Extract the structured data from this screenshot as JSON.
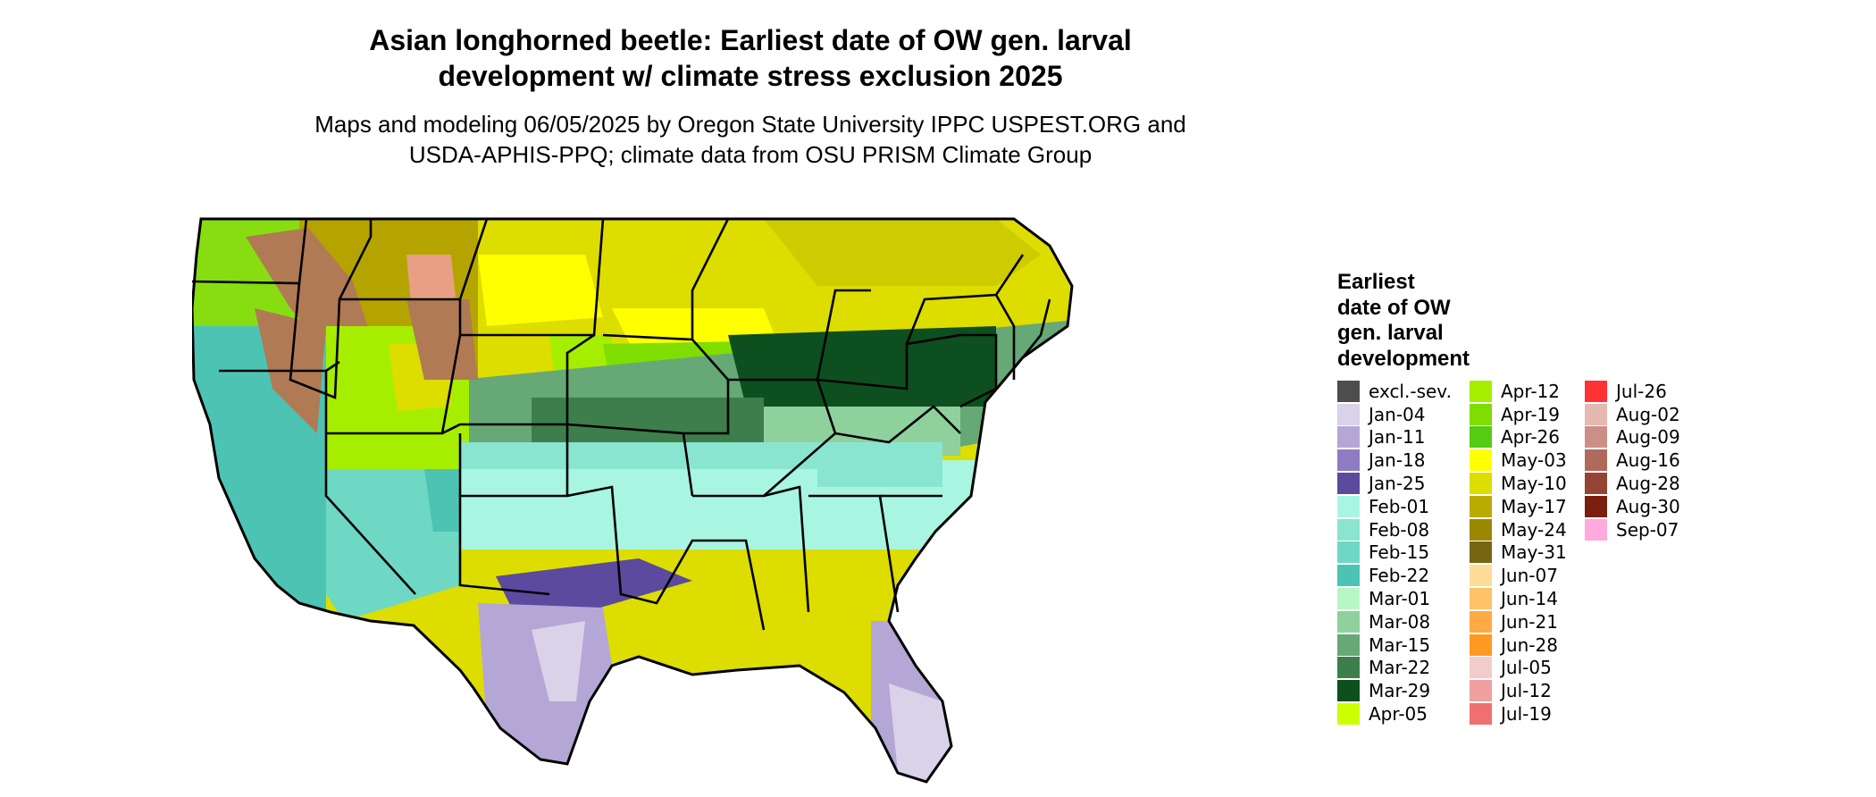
{
  "header": {
    "title_line1": "Asian longhorned beetle: Earliest date of OW gen. larval",
    "title_line2": "development w/ climate stress exclusion 2025",
    "subtitle_line1": "Maps and modeling 06/05/2025 by Oregon State University IPPC USPEST.ORG and",
    "subtitle_line2": "USDA-APHIS-PPQ; climate data from OSU PRISM Climate Group"
  },
  "legend": {
    "title_line1": "Earliest",
    "title_line2": "date of OW",
    "title_line3": "gen. larval",
    "title_line4": "development",
    "items": [
      {
        "label": "excl.-sev.",
        "color": "#4d4d4d"
      },
      {
        "label": "Jan-04",
        "color": "#d9d2e9"
      },
      {
        "label": "Jan-11",
        "color": "#b4a7d6"
      },
      {
        "label": "Jan-18",
        "color": "#8e7cc3"
      },
      {
        "label": "Jan-25",
        "color": "#5b4a9e"
      },
      {
        "label": "Feb-01",
        "color": "#a8f5e2"
      },
      {
        "label": "Feb-08",
        "color": "#8ae5d0"
      },
      {
        "label": "Feb-15",
        "color": "#6ed8c4"
      },
      {
        "label": "Feb-22",
        "color": "#4dc3b3"
      },
      {
        "label": "Mar-01",
        "color": "#b7f7c4"
      },
      {
        "label": "Mar-08",
        "color": "#8fd19c"
      },
      {
        "label": "Mar-15",
        "color": "#66a876"
      },
      {
        "label": "Mar-22",
        "color": "#3d7e4c"
      },
      {
        "label": "Mar-29",
        "color": "#0d4f1e"
      },
      {
        "label": "Apr-05",
        "color": "#ccff00"
      },
      {
        "label": "Apr-12",
        "color": "#a6ee00"
      },
      {
        "label": "Apr-19",
        "color": "#7fdd00"
      },
      {
        "label": "Apr-26",
        "color": "#55cc11"
      },
      {
        "label": "May-03",
        "color": "#ffff00"
      },
      {
        "label": "May-10",
        "color": "#dddd00"
      },
      {
        "label": "May-17",
        "color": "#bbaa00"
      },
      {
        "label": "May-24",
        "color": "#998800"
      },
      {
        "label": "May-31",
        "color": "#776611"
      },
      {
        "label": "Jun-07",
        "color": "#ffdd99"
      },
      {
        "label": "Jun-14",
        "color": "#ffc266"
      },
      {
        "label": "Jun-21",
        "color": "#ffaa44"
      },
      {
        "label": "Jun-28",
        "color": "#ff9922"
      },
      {
        "label": "Jul-05",
        "color": "#f2cccc"
      },
      {
        "label": "Jul-12",
        "color": "#f0a0a0"
      },
      {
        "label": "Jul-19",
        "color": "#f07070"
      },
      {
        "label": "Jul-26",
        "color": "#ff3333"
      },
      {
        "label": "Aug-02",
        "color": "#e5b8b0"
      },
      {
        "label": "Aug-09",
        "color": "#cc8f85"
      },
      {
        "label": "Aug-16",
        "color": "#b06a5c"
      },
      {
        "label": "Aug-28",
        "color": "#954433"
      },
      {
        "label": "Aug-30",
        "color": "#7a1f10"
      },
      {
        "label": "Sep-07",
        "color": "#ffaadd"
      }
    ]
  }
}
